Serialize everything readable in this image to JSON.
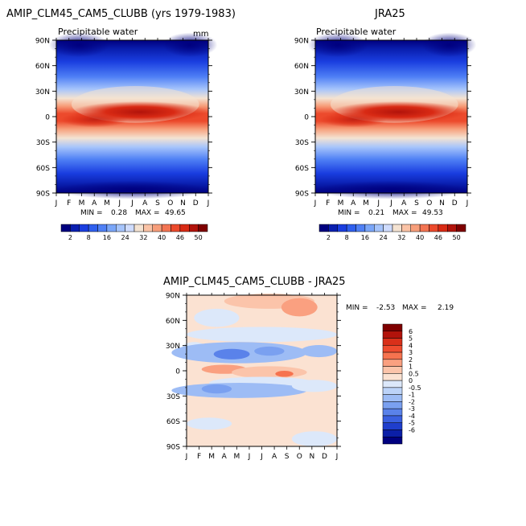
{
  "panels": [
    {
      "title": "AMIP_CLM45_CAM5_CLUBB (yrs 1979-1983)",
      "subtitle": "Precipitable water",
      "units": "mm",
      "min_label": "MIN =",
      "min_value": "0.28",
      "max_label": "MAX =",
      "max_value": "49.65"
    },
    {
      "title": "JRA25",
      "subtitle": "Precipitable water",
      "units": "",
      "min_label": "MIN =",
      "min_value": "0.21",
      "max_label": "MAX =",
      "max_value": "49.53"
    }
  ],
  "diff_panel": {
    "title": "AMIP_CLM45_CAM5_CLUBB - JRA25",
    "min_label": "MIN =",
    "min_value": "-2.53",
    "max_label": "MAX =",
    "max_value": "2.19"
  },
  "colorbar_top": {
    "labels": [
      "2",
      "8",
      "16",
      "24",
      "32",
      "40",
      "46",
      "50"
    ],
    "colors": [
      "#00007f",
      "#0a1fb0",
      "#1a3ee0",
      "#2f5fee",
      "#4f80f5",
      "#7aa6f8",
      "#a6c4fb",
      "#cfdcfd",
      "#f4e3d2",
      "#fac3a6",
      "#f79e7a",
      "#f37452",
      "#ec4a2c",
      "#d92a14",
      "#b2130b",
      "#7f0000"
    ]
  },
  "colorbar_diff": {
    "labels": [
      "6",
      "5",
      "4",
      "3",
      "2",
      "1",
      "0.5",
      "0",
      "-0.5",
      "-1",
      "-2",
      "-3",
      "-4",
      "-5",
      "-6"
    ],
    "colors": [
      "#7f0000",
      "#b2130b",
      "#d9301a",
      "#ee4c2f",
      "#f6734f",
      "#faa080",
      "#fbc4aa",
      "#fbe2d2",
      "#dce8fa",
      "#bcd3f8",
      "#9dbcf5",
      "#7aa0f0",
      "#5a82ea",
      "#3a60e0",
      "#1f3ecc",
      "#0b1fa8",
      "#00007f"
    ]
  },
  "months": [
    "J",
    "F",
    "M",
    "A",
    "M",
    "J",
    "J",
    "A",
    "S",
    "O",
    "N",
    "D",
    "J"
  ],
  "lat_labels": [
    "90N",
    "60N",
    "30N",
    "0",
    "30S",
    "60S",
    "90S"
  ],
  "chart_data": [
    {
      "type": "heatmap",
      "title": "AMIP_CLM45_CAM5_CLUBB (yrs 1979-1983)",
      "subtitle": "Precipitable water",
      "units": "mm",
      "x": [
        "J",
        "F",
        "M",
        "A",
        "M",
        "J",
        "J",
        "A",
        "S",
        "O",
        "N",
        "D",
        "J"
      ],
      "y": [
        "90N",
        "60N",
        "30N",
        "0",
        "30S",
        "60S",
        "90S"
      ],
      "levels": [
        2,
        5,
        8,
        12,
        16,
        20,
        24,
        28,
        32,
        36,
        40,
        43,
        46,
        48,
        50
      ],
      "min": 0.28,
      "max": 49.65
    },
    {
      "type": "heatmap",
      "title": "JRA25",
      "subtitle": "Precipitable water",
      "x": [
        "J",
        "F",
        "M",
        "A",
        "M",
        "J",
        "J",
        "A",
        "S",
        "O",
        "N",
        "D",
        "J"
      ],
      "y": [
        "90N",
        "60N",
        "30N",
        "0",
        "30S",
        "60S",
        "90S"
      ],
      "levels": [
        2,
        5,
        8,
        12,
        16,
        20,
        24,
        28,
        32,
        36,
        40,
        43,
        46,
        48,
        50
      ],
      "min": 0.21,
      "max": 49.53
    },
    {
      "type": "heatmap",
      "title": "AMIP_CLM45_CAM5_CLUBB - JRA25",
      "x": [
        "J",
        "F",
        "M",
        "A",
        "M",
        "J",
        "J",
        "A",
        "S",
        "O",
        "N",
        "D",
        "J"
      ],
      "y": [
        "90N",
        "60N",
        "30N",
        "0",
        "30S",
        "60S",
        "90S"
      ],
      "levels": [
        -6,
        -5,
        -4,
        -3,
        -2,
        -1,
        -0.5,
        0,
        0.5,
        1,
        2,
        3,
        4,
        5,
        6
      ],
      "min": -2.53,
      "max": 2.19
    }
  ]
}
